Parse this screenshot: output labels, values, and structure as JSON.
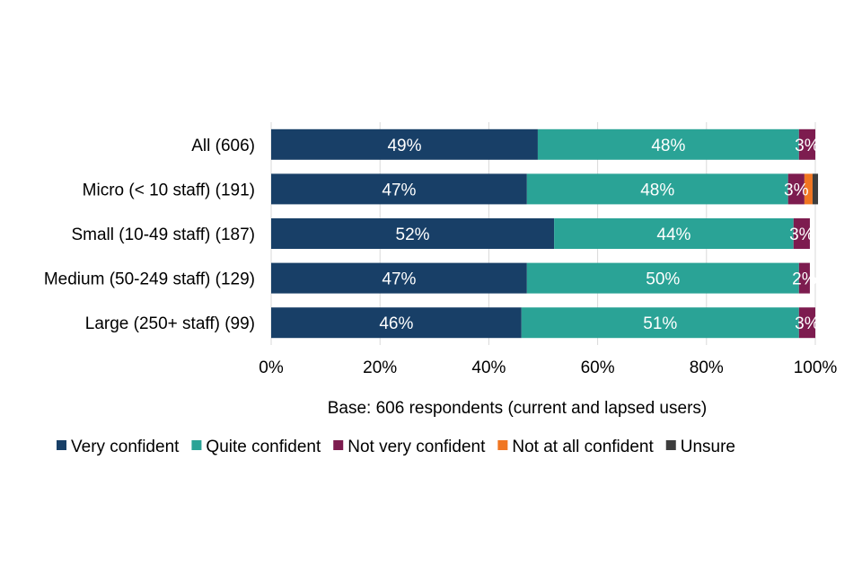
{
  "chart_data": {
    "type": "bar",
    "orientation": "horizontal",
    "stacked": true,
    "categories": [
      "All (606)",
      "Micro (< 10 staff) (191)",
      "Small (10-49 staff) (187)",
      "Medium (50-249 staff) (129)",
      "Large (250+ staff) (99)"
    ],
    "series": [
      {
        "name": "Very confident",
        "color": "#183f67",
        "values": [
          49,
          47,
          52,
          47,
          46
        ],
        "labels": [
          "49%",
          "47%",
          "52%",
          "47%",
          "46%"
        ]
      },
      {
        "name": "Quite confident",
        "color": "#2aa396",
        "values": [
          48,
          48,
          44,
          50,
          51
        ],
        "labels": [
          "48%",
          "48%",
          "44%",
          "50%",
          "51%"
        ]
      },
      {
        "name": "Not very confident",
        "color": "#7d1c4f",
        "values": [
          3,
          3,
          3,
          2,
          3
        ],
        "labels": [
          "3%",
          "3%",
          "3%",
          "2%",
          "3%"
        ]
      },
      {
        "name": "Not at all confident",
        "color": "#f07622",
        "values": [
          0,
          1.5,
          0,
          0,
          0
        ],
        "labels": [
          "",
          "",
          "",
          "",
          ""
        ]
      },
      {
        "name": "Unsure",
        "color": "#3d3d3d",
        "values": [
          0,
          1,
          0,
          0,
          0
        ],
        "labels": [
          "",
          "",
          "",
          "",
          ""
        ]
      }
    ],
    "xlim": [
      0,
      100
    ],
    "xticks": [
      "0%",
      "20%",
      "40%",
      "60%",
      "80%",
      "100%"
    ],
    "xlabel": "Base: 606 respondents (current and lapsed users)",
    "ylabel": "",
    "title": "",
    "legend_position": "bottom",
    "grid": true
  }
}
